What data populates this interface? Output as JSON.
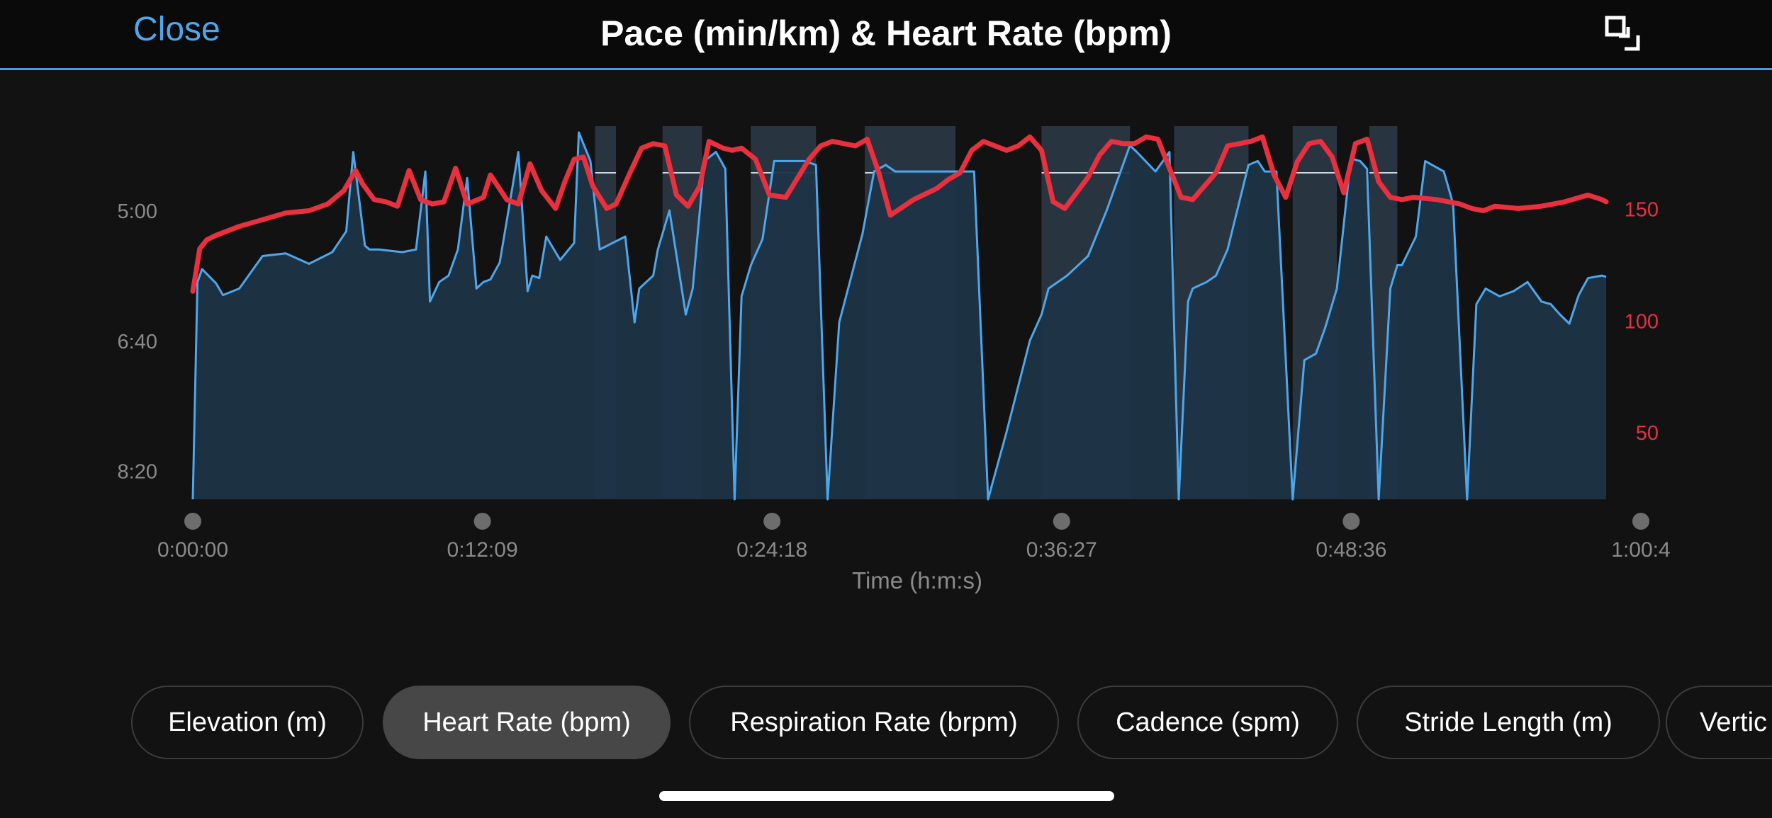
{
  "header": {
    "close_label": "Close",
    "title": "Pace (min/km) & Heart Rate (bpm)",
    "expand_icon": "expand-icon"
  },
  "chart_data": {
    "type": "area",
    "title": "Pace (min/km) & Heart Rate (bpm)",
    "xlabel": "Time (h:m:s)",
    "x_ticks": [
      "0:00:00",
      "0:12:09",
      "0:24:18",
      "0:36:27",
      "0:48:36",
      "1:00:4"
    ],
    "x_range_min": [
      0,
      60.75
    ],
    "y_left": {
      "label": "Pace (min/km)",
      "ticks": [
        "5:00",
        "6:40",
        "8:20"
      ],
      "tick_values": [
        300,
        400,
        500
      ],
      "range_s_per_km": [
        240,
        522
      ],
      "inverted": true
    },
    "y_right": {
      "label": "Heart Rate (bpm)",
      "ticks": [
        "150",
        "100",
        "50"
      ],
      "tick_values": [
        150,
        100,
        50
      ],
      "range": [
        20,
        184
      ]
    },
    "series": [
      {
        "name": "Pace (min/km)",
        "color": "#4ea6ec",
        "fill": "#1e3547",
        "x": [
          0,
          0.2,
          0.4,
          1.0,
          1.3,
          2.0,
          3.0,
          4.0,
          5.0,
          6.0,
          6.6,
          6.9,
          7.4,
          7.6,
          8.0,
          9.0,
          9.6,
          10.0,
          10.2,
          10.6,
          11.0,
          11.4,
          11.8,
          12.2,
          12.5,
          12.8,
          13.2,
          14.0,
          14.4,
          14.6,
          14.9,
          15.2,
          15.8,
          16.4,
          16.6,
          17.1,
          17.5,
          18.6,
          19.0,
          19.2,
          19.8,
          20.0,
          20.5,
          21.2,
          21.5,
          22.0,
          22.5,
          22.9,
          23.3,
          23.6,
          24.0,
          24.5,
          25.0,
          25.8,
          26.3,
          26.8,
          27.3,
          27.8,
          28.8,
          29.3,
          29.8,
          30.2,
          31.0,
          32.0,
          33.0,
          33.6,
          34.2,
          35.0,
          36.0,
          36.5,
          36.8,
          37.6,
          38.5,
          39.3,
          40.3,
          40.6,
          41.4,
          42.0,
          42.4,
          42.8,
          43.0,
          43.6,
          44.0,
          44.5,
          45.4,
          45.8,
          46.1,
          46.6,
          47.3,
          47.8,
          48.3,
          48.7,
          49.2,
          49.8,
          50.2,
          50.5,
          51.0,
          51.5,
          51.8,
          52.0,
          52.6,
          53.0,
          53.8,
          54.2,
          54.8,
          55.2,
          55.6,
          56.2,
          56.8,
          57.4,
          58.0,
          58.4,
          58.8,
          59.2,
          59.6,
          60.0,
          60.6,
          61.0
        ],
        "y_s_per_km": [
          522,
          355,
          345,
          356,
          365,
          360,
          335,
          333,
          341,
          332,
          316,
          255,
          327,
          330,
          330,
          332,
          330,
          270,
          370,
          355,
          350,
          330,
          275,
          360,
          355,
          353,
          340,
          255,
          362,
          350,
          352,
          320,
          338,
          325,
          240,
          262,
          330,
          320,
          386,
          360,
          350,
          330,
          300,
          380,
          360,
          262,
          255,
          268,
          522,
          366,
          342,
          322,
          262,
          262,
          262,
          265,
          522,
          386,
          318,
          270,
          265,
          270,
          270,
          270,
          270,
          270,
          522,
          470,
          400,
          380,
          360,
          350,
          335,
          300,
          250,
          255,
          270,
          255,
          522,
          370,
          360,
          355,
          350,
          330,
          265,
          262,
          270,
          270,
          522,
          415,
          410,
          390,
          360,
          260,
          262,
          268,
          522,
          360,
          342,
          342,
          320,
          262,
          270,
          295,
          522,
          372,
          360,
          366,
          362,
          355,
          370,
          372,
          380,
          387,
          365,
          352,
          350,
          351
        ],
        "active_intervals_min": [
          [
            17.3,
            18.2
          ],
          [
            20.2,
            21.9
          ],
          [
            24.0,
            26.8
          ],
          [
            28.9,
            32.8
          ],
          [
            36.5,
            40.3
          ],
          [
            42.2,
            45.4
          ],
          [
            47.3,
            49.2
          ],
          [
            50.6,
            51.8
          ]
        ]
      },
      {
        "name": "Heart Rate (bpm)",
        "color": "#e8303e",
        "x": [
          0,
          0.3,
          0.6,
          1.0,
          2.0,
          3.0,
          4.0,
          5.0,
          5.8,
          6.5,
          7.0,
          7.3,
          7.8,
          8.3,
          8.8,
          9.3,
          9.8,
          10.3,
          10.8,
          11.3,
          11.8,
          12.5,
          12.8,
          13.5,
          14.0,
          14.5,
          15.0,
          15.6,
          16.0,
          16.4,
          16.8,
          17.2,
          17.8,
          18.2,
          18.8,
          19.3,
          19.8,
          20.3,
          20.8,
          21.3,
          21.8,
          22.2,
          22.8,
          23.2,
          23.6,
          24.2,
          24.8,
          25.5,
          26.5,
          27.0,
          27.5,
          28.0,
          28.5,
          29.0,
          29.5,
          30.0,
          31.0,
          32.0,
          32.5,
          33.0,
          33.5,
          34.0,
          34.5,
          35.0,
          35.5,
          36.0,
          36.5,
          37.0,
          37.5,
          38.0,
          38.5,
          39.0,
          39.5,
          40.0,
          40.5,
          41.0,
          41.5,
          42.0,
          42.5,
          43.0,
          44.0,
          44.5,
          45.0,
          45.5,
          46.0,
          46.5,
          47.0,
          47.5,
          48.0,
          48.5,
          49.0,
          49.5,
          50.0,
          50.5,
          51.0,
          51.5,
          52.0,
          52.5,
          53.5,
          54.5,
          55.0,
          55.5,
          56.0,
          57.0,
          58.0,
          59.0,
          60.0,
          60.6,
          61.0
        ],
        "y": [
          113,
          132,
          136,
          138,
          142,
          145,
          148,
          149,
          152,
          158,
          167,
          161,
          154,
          153,
          151,
          167,
          154,
          152,
          153,
          168,
          152,
          155,
          165,
          154,
          152,
          170,
          158,
          150,
          162,
          172,
          173,
          160,
          150,
          152,
          166,
          177,
          179,
          178,
          156,
          151,
          160,
          180,
          177,
          176,
          177,
          172,
          156,
          155,
          172,
          178,
          180,
          179,
          178,
          181,
          166,
          147,
          154,
          159,
          163,
          166,
          176,
          180,
          178,
          176,
          178,
          182,
          176,
          153,
          150,
          157,
          164,
          174,
          180,
          179,
          179,
          182,
          181,
          168,
          155,
          154,
          166,
          178,
          179,
          180,
          182,
          165,
          155,
          171,
          179,
          180,
          173,
          157,
          179,
          181,
          162,
          155,
          154,
          155,
          154,
          152,
          150,
          149,
          151,
          150,
          151,
          153,
          156,
          154,
          153
        ]
      }
    ],
    "grid": false,
    "legend": "none"
  },
  "metrics": [
    {
      "label": "Elevation (m)",
      "selected": false
    },
    {
      "label": "Heart Rate (bpm)",
      "selected": true
    },
    {
      "label": "Respiration Rate (brpm)",
      "selected": false
    },
    {
      "label": "Cadence (spm)",
      "selected": false
    },
    {
      "label": "Stride Length (m)",
      "selected": false
    },
    {
      "label": "Vertic",
      "selected": false
    }
  ],
  "colors": {
    "accent": "#4ea6ec",
    "heart_rate": "#e8303e",
    "background": "#121212"
  }
}
